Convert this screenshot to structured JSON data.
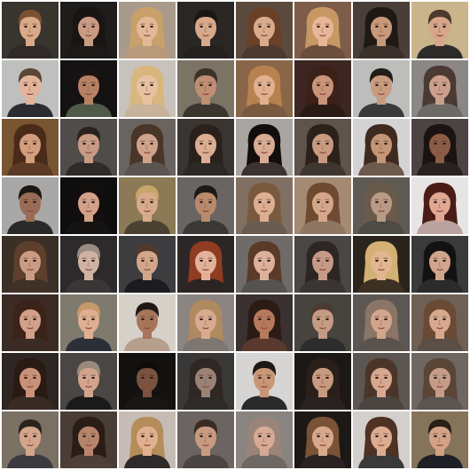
{
  "grid": {
    "rows": 8,
    "columns": 8,
    "tiles": [
      {
        "bg": "#3a342e",
        "skin": "#d9a98a",
        "hair": "#7a5232",
        "hair_style": "short",
        "cloth": "#2f2a28"
      },
      {
        "bg": "#1f1d1c",
        "skin": "#c99b84",
        "hair": "#1a1412",
        "hair_style": "long",
        "cloth": "#1c1a19"
      },
      {
        "bg": "#a99b8c",
        "skin": "#e3b897",
        "hair": "#c9a06a",
        "hair_style": "long",
        "cloth": "#b89a7a"
      },
      {
        "bg": "#2a2624",
        "skin": "#d7a88a",
        "hair": "#1b1714",
        "hair_style": "short",
        "cloth": "#25211f"
      },
      {
        "bg": "#5b4a3e",
        "skin": "#d9ab8d",
        "hair": "#6a4127",
        "hair_style": "long",
        "cloth": "#4b3a2f"
      },
      {
        "bg": "#7d5c4a",
        "skin": "#e8b697",
        "hair": "#c79863",
        "hair_style": "long",
        "cloth": "#6b4e3e"
      },
      {
        "bg": "#4a3f38",
        "skin": "#c8987a",
        "hair": "#1f1815",
        "hair_style": "long",
        "cloth": "#3a312b"
      },
      {
        "bg": "#c9b48c",
        "skin": "#d6a58a",
        "hair": "#4b3a2d",
        "hair_style": "short",
        "cloth": "#2d2a2a"
      },
      {
        "bg": "#bfc0bd",
        "skin": "#e2b49a",
        "hair": "#5b4636",
        "hair_style": "short",
        "cloth": "#2b2d33"
      },
      {
        "bg": "#141212",
        "skin": "#b58063",
        "hair": "#191311",
        "hair_style": "short",
        "cloth": "#4f5a49"
      },
      {
        "bg": "#c7c2bb",
        "skin": "#e8c1a2",
        "hair": "#d8b77e",
        "hair_style": "long",
        "cloth": "#c8b39a"
      },
      {
        "bg": "#7b7364",
        "skin": "#c08e73",
        "hair": "#3d322a",
        "hair_style": "short",
        "cloth": "#3a352e"
      },
      {
        "bg": "#8a6648",
        "skin": "#e0b08f",
        "hair": "#b7824f",
        "hair_style": "long",
        "cloth": "#7a5a3f"
      },
      {
        "bg": "#3b2622",
        "skin": "#c99479",
        "hair": "#3c2119",
        "hair_style": "long",
        "cloth": "#2a1b17"
      },
      {
        "bg": "#bdbdbb",
        "skin": "#c99b7e",
        "hair": "#241c18",
        "hair_style": "short",
        "cloth": "#3a3a3a"
      },
      {
        "bg": "#8a8785",
        "skin": "#caa08c",
        "hair": "#4a3a33",
        "hair_style": "long",
        "cloth": "#6e6a66"
      },
      {
        "bg": "#7a5532",
        "skin": "#d29e7d",
        "hair": "#4a2a18",
        "hair_style": "long",
        "cloth": "#5b3b25"
      },
      {
        "bg": "#4f4c49",
        "skin": "#c79b84",
        "hair": "#2a221e",
        "hair_style": "short",
        "cloth": "#2e2b29"
      },
      {
        "bg": "#6a6460",
        "skin": "#d0a48c",
        "hair": "#4a3629",
        "hair_style": "long",
        "cloth": "#5b5450"
      },
      {
        "bg": "#3a3531",
        "skin": "#dbae93",
        "hair": "#2b211c",
        "hair_style": "long",
        "cloth": "#2d2826"
      },
      {
        "bg": "#aaa5a0",
        "skin": "#d8ab93",
        "hair": "#120e0d",
        "hair_style": "long",
        "cloth": "#3c3330"
      },
      {
        "bg": "#5e544c",
        "skin": "#c99a80",
        "hair": "#2d211b",
        "hair_style": "long",
        "cloth": "#3f3630"
      },
      {
        "bg": "#d4d2d2",
        "skin": "#c49576",
        "hair": "#3f2a1f",
        "hair_style": "long",
        "cloth": "#6c5a4c"
      },
      {
        "bg": "#4d4340",
        "skin": "#8a5c45",
        "hair": "#1a1311",
        "hair_style": "long",
        "cloth": "#2a2220"
      },
      {
        "bg": "#a9a8a6",
        "skin": "#9a6b55",
        "hair": "#1c1715",
        "hair_style": "short",
        "cloth": "#2a2a2a"
      },
      {
        "bg": "#0f0e0e",
        "skin": "#d2a18a",
        "hair": "#120e0d",
        "hair_style": "long",
        "cloth": "#161413"
      },
      {
        "bg": "#8b7a55",
        "skin": "#d8aa8c",
        "hair": "#c7a66d",
        "hair_style": "short",
        "cloth": "#4b4233"
      },
      {
        "bg": "#6a6562",
        "skin": "#b98a6c",
        "hair": "#1e1916",
        "hair_style": "short",
        "cloth": "#3b3835"
      },
      {
        "bg": "#7f7063",
        "skin": "#dcae92",
        "hair": "#7a5a3e",
        "hair_style": "long",
        "cloth": "#6a5c50"
      },
      {
        "bg": "#a48a73",
        "skin": "#d6a68a",
        "hair": "#6e4a30",
        "hair_style": "long",
        "cloth": "#8f7663"
      },
      {
        "bg": "#5f5a53",
        "skin": "#b99a84",
        "hair": "#6a5a4a",
        "hair_style": "long",
        "cloth": "#4e4a44"
      },
      {
        "bg": "#e7e4e4",
        "skin": "#e0a892",
        "hair": "#4a1c16",
        "hair_style": "long",
        "cloth": "#b9a2a0"
      },
      {
        "bg": "#3b3026",
        "skin": "#c99c84",
        "hair": "#5d3f2b",
        "hair_style": "long",
        "cloth": "#3f3128"
      },
      {
        "bg": "#2c2a2a",
        "skin": "#cfb2a2",
        "hair": "#9a8c82",
        "hair_style": "short",
        "cloth": "#3b3636"
      },
      {
        "bg": "#3d3d3f",
        "skin": "#d3a68c",
        "hair": "#4f3a2c",
        "hair_style": "short",
        "cloth": "#1c1c20"
      },
      {
        "bg": "#2c2726",
        "skin": "#e2b199",
        "hair": "#8f3c22",
        "hair_style": "long",
        "cloth": "#2c2422"
      },
      {
        "bg": "#6f6b68",
        "skin": "#dcb09a",
        "hair": "#5b3a28",
        "hair_style": "long",
        "cloth": "#565250"
      },
      {
        "bg": "#4a4643",
        "skin": "#c69a86",
        "hair": "#2e2622",
        "hair_style": "long",
        "cloth": "#3a3533"
      },
      {
        "bg": "#2a241c",
        "skin": "#e2b690",
        "hair": "#d3b073",
        "hair_style": "long",
        "cloth": "#3c3022"
      },
      {
        "bg": "#3a3a3a",
        "skin": "#d0a58d",
        "hair": "#141111",
        "hair_style": "long",
        "cloth": "#2b2b2b"
      },
      {
        "bg": "#3a2b25",
        "skin": "#d2a088",
        "hair": "#3b231a",
        "hair_style": "long",
        "cloth": "#3a2b25"
      },
      {
        "bg": "#7f7a6e",
        "skin": "#e0af91",
        "hair": "#c59a6a",
        "hair_style": "short",
        "cloth": "#2d2f38"
      },
      {
        "bg": "#d6d0c9",
        "skin": "#a77559",
        "hair": "#1f1815",
        "hair_style": "short",
        "cloth": "#b79f8d"
      },
      {
        "bg": "#8a8581",
        "skin": "#d8ab90",
        "hair": "#b08a5f",
        "hair_style": "long",
        "cloth": "#7d7671"
      },
      {
        "bg": "#3a3130",
        "skin": "#b7795c",
        "hair": "#2a1b16",
        "hair_style": "long",
        "cloth": "#5a3a2e"
      },
      {
        "bg": "#474440",
        "skin": "#c59b84",
        "hair": "#4c3b30",
        "hair_style": "short",
        "cloth": "#2d2d2d"
      },
      {
        "bg": "#5d5753",
        "skin": "#d2a58d",
        "hair": "#8a7566",
        "hair_style": "long",
        "cloth": "#5a524d"
      },
      {
        "bg": "#6e6055",
        "skin": "#d6a98e",
        "hair": "#6a4a34",
        "hair_style": "long",
        "cloth": "#5b4f45"
      },
      {
        "bg": "#2e2622",
        "skin": "#c99278",
        "hair": "#2a1a14",
        "hair_style": "long",
        "cloth": "#3a2a24"
      },
      {
        "bg": "#4a4643",
        "skin": "#d3a48c",
        "hair": "#9a8a7e",
        "hair_style": "short",
        "cloth": "#1a1a1a"
      },
      {
        "bg": "#141211",
        "skin": "#7a5240",
        "hair": "#0f0c0b",
        "hair_style": "short",
        "cloth": "#1a1615"
      },
      {
        "bg": "#3a3836",
        "skin": "#9a8275",
        "hair": "#2e2724",
        "hair_style": "long",
        "cloth": "#2e2a28"
      },
      {
        "bg": "#d7d5d3",
        "skin": "#c89676",
        "hair": "#1e1815",
        "hair_style": "short",
        "cloth": "#2a2a2a"
      },
      {
        "bg": "#1c1816",
        "skin": "#c79a80",
        "hair": "#2b1f1a",
        "hair_style": "long",
        "cloth": "#2a2220"
      },
      {
        "bg": "#5b5652",
        "skin": "#d6a88e",
        "hair": "#4a3528",
        "hair_style": "long",
        "cloth": "#4b4440"
      },
      {
        "bg": "#6e6660",
        "skin": "#c49c88",
        "hair": "#5a4536",
        "hair_style": "long",
        "cloth": "#5b5450"
      },
      {
        "bg": "#7a7064",
        "skin": "#d3a58b",
        "hair": "#2b221d",
        "hair_style": "short",
        "cloth": "#3a3a3f"
      },
      {
        "bg": "#4a3d35",
        "skin": "#b7856b",
        "hair": "#2a1d17",
        "hair_style": "long",
        "cloth": "#4e4038"
      },
      {
        "bg": "#c5bdb5",
        "skin": "#e0b091",
        "hair": "#b58d5a",
        "hair_style": "long",
        "cloth": "#2e2a2a"
      },
      {
        "bg": "#6c6460",
        "skin": "#c89b80",
        "hair": "#3a2b22",
        "hair_style": "short",
        "cloth": "#4a4542"
      },
      {
        "bg": "#8a8480",
        "skin": "#d6aa95",
        "hair": "#9a8478",
        "hair_style": "long",
        "cloth": "#6e6864"
      },
      {
        "bg": "#1c1816",
        "skin": "#d8a88c",
        "hair": "#7a5236",
        "hair_style": "long",
        "cloth": "#2a2220"
      },
      {
        "bg": "#d3cfcc",
        "skin": "#dcac90",
        "hair": "#4e3224",
        "hair_style": "long",
        "cloth": "#3a3a3a"
      },
      {
        "bg": "#85745a",
        "skin": "#d3a185",
        "hair": "#2a1e17",
        "hair_style": "short",
        "cloth": "#1e2026"
      }
    ]
  }
}
